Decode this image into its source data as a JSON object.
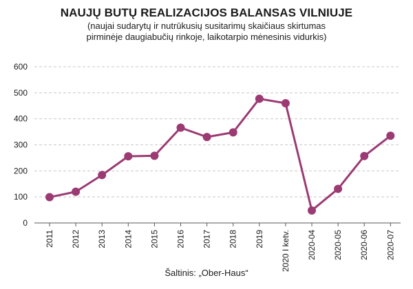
{
  "header": {
    "title": "NAUJŲ BUTŲ REALIZACIJOS BALANSAS VILNIUJE",
    "subtitle_line1": "(naujai sudarytų ir nutrūkusių susitarimų skaičiaus skirtumas",
    "subtitle_line2": "pirminėje daugiabučių rinkoje, laikotarpio mėnesinis vidurkis)"
  },
  "source": "Šaltinis: „Ober-Haus“",
  "chart_data": {
    "type": "line",
    "categories": [
      "2011",
      "2012",
      "2013",
      "2014",
      "2015",
      "2016",
      "2017",
      "2018",
      "2019",
      "2020 I ketv.",
      "2020-04",
      "2020-05",
      "2020-06",
      "2020-07"
    ],
    "values": [
      99,
      120,
      184,
      256,
      258,
      366,
      330,
      348,
      477,
      460,
      48,
      131,
      257,
      335
    ],
    "y_ticks": [
      0,
      100,
      200,
      300,
      400,
      500,
      600
    ],
    "ylim": [
      0,
      600
    ],
    "grid": "horizontal dashed",
    "color": "#9b3a73"
  }
}
